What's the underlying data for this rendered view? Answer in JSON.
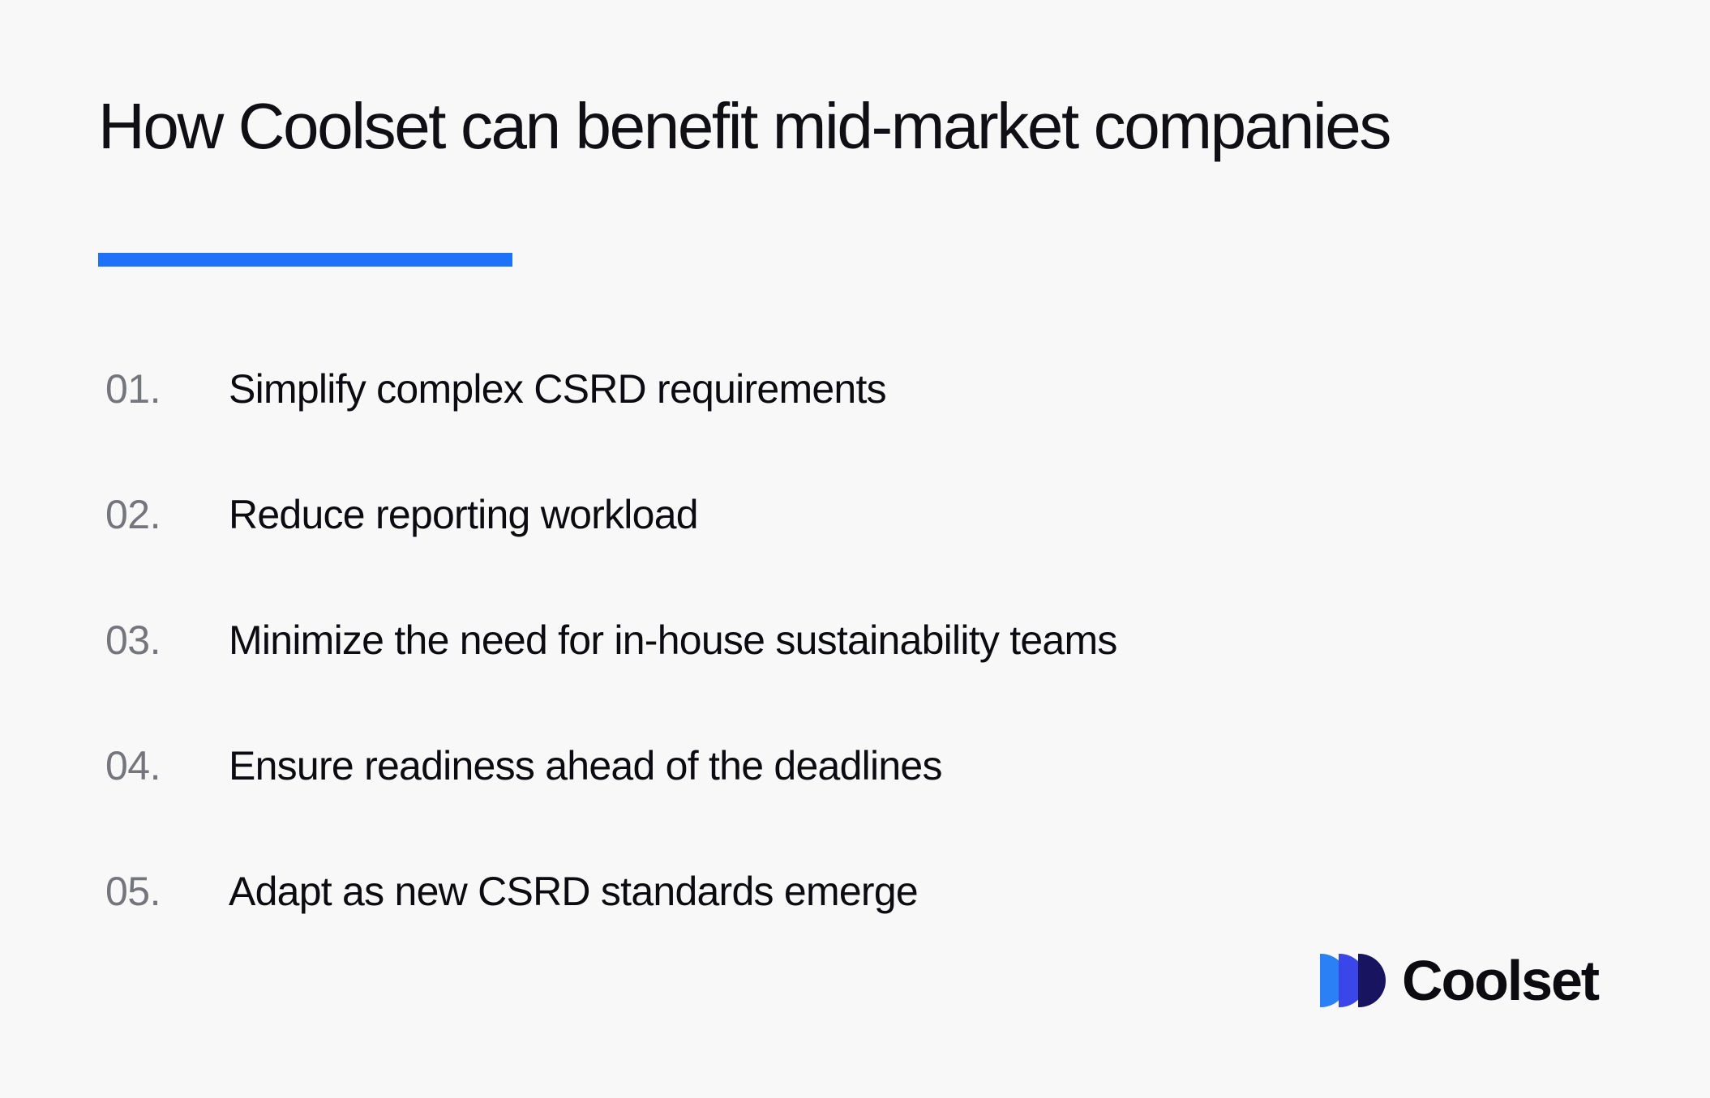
{
  "page": {
    "background_color": "#f8f8f8"
  },
  "header": {
    "title": "How Coolset can benefit mid-market companies",
    "accent_bar_color": "#1e72f8"
  },
  "benefits": {
    "items": [
      {
        "number": "01.",
        "text": "Simplify complex CSRD requirements"
      },
      {
        "number": "02.",
        "text": "Reduce reporting workload"
      },
      {
        "number": "03.",
        "text": "Minimize the need for in-house sustainability teams"
      },
      {
        "number": "04.",
        "text": "Ensure readiness ahead of the deadlines"
      },
      {
        "number": "05.",
        "text": "Adapt as new CSRD standards emerge"
      }
    ]
  },
  "logo": {
    "wordmark": "Coolset",
    "colors": {
      "light_blue": "#2b80f6",
      "royal_blue": "#3a46e8",
      "navy": "#181460"
    }
  }
}
